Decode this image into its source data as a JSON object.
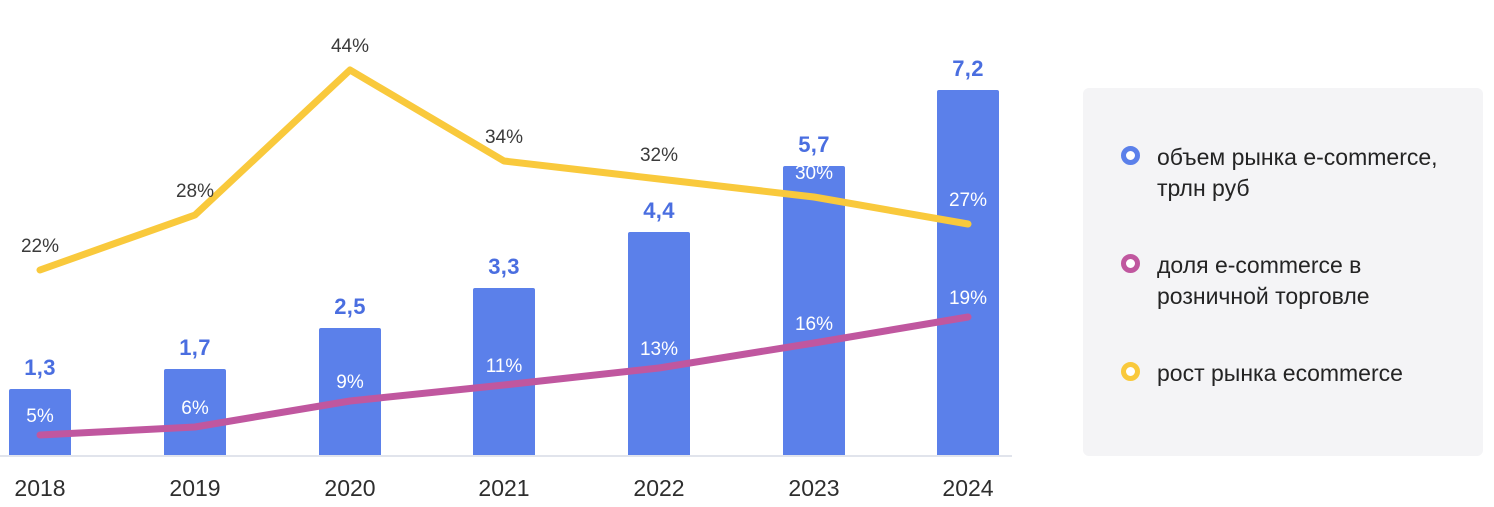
{
  "chart_data": {
    "type": "bar",
    "categories": [
      "2018",
      "2019",
      "2020",
      "2021",
      "2022",
      "2023",
      "2024"
    ],
    "series": [
      {
        "name": "объем рынка e-commerce, трлн руб",
        "type": "bar",
        "color": "#5b80ea",
        "values": [
          1.3,
          1.7,
          2.5,
          3.3,
          4.4,
          5.7,
          7.2
        ],
        "labels": [
          "1,3",
          "1,7",
          "2,5",
          "3,3",
          "4,4",
          "5,7",
          "7,2"
        ]
      },
      {
        "name": "доля e-commerce в розничной торговле",
        "type": "line",
        "color": "#c0579f",
        "values": [
          5,
          6,
          9,
          11,
          13,
          16,
          19
        ],
        "labels": [
          "5%",
          "6%",
          "9%",
          "11%",
          "13%",
          "16%",
          "19%"
        ]
      },
      {
        "name": "рост рынка ecommerce",
        "type": "line",
        "color": "#f9c93c",
        "values": [
          22,
          28,
          44,
          34,
          32,
          30,
          27
        ],
        "labels": [
          "22%",
          "28%",
          "44%",
          "34%",
          "32%",
          "30%",
          "27%"
        ]
      }
    ],
    "title": "",
    "xlabel": "",
    "ylabel": "",
    "ylim_bar": [
      0,
      7.5
    ],
    "ylim_pct": [
      0,
      50
    ],
    "grid": false,
    "legend_position": "right",
    "value_label_color": "#4a6ee0",
    "outside_pct_label_color": "#3b3b3b",
    "inside_pct_label_color": "#ffffff"
  },
  "legend": {
    "items": [
      {
        "label": "объем рынка e-commerce, трлн руб",
        "color": "#5b80ea",
        "marker": "ring"
      },
      {
        "label": "доля e-commerce в розничной торговле",
        "color": "#c0579f",
        "marker": "ring"
      },
      {
        "label": "рост рынка ecommerce",
        "color": "#f9c93c",
        "marker": "ring"
      }
    ]
  }
}
